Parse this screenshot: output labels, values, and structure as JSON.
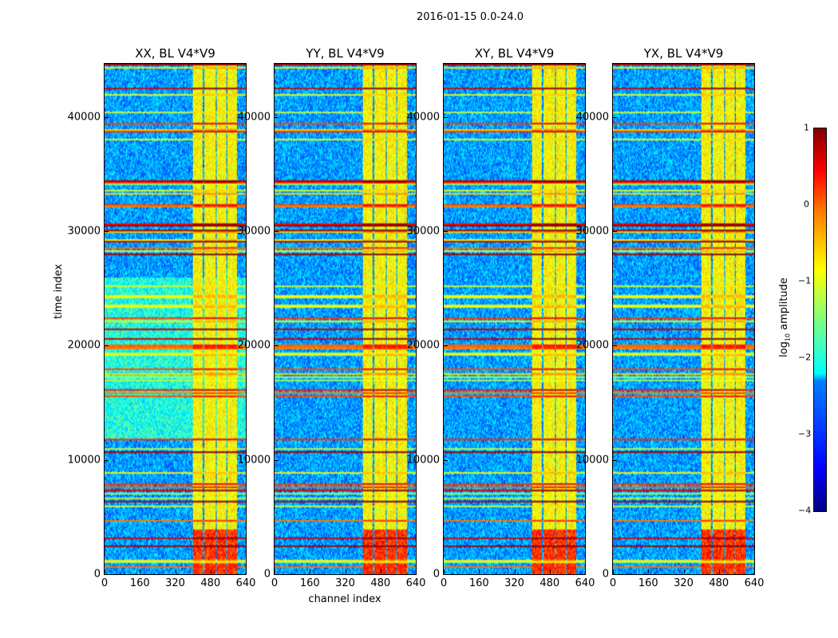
{
  "chart_data": {
    "type": "heatmap",
    "title": "2016-01-15 0.0-24.0",
    "xlabel": "channel index",
    "ylabel": "time index",
    "xlim": [
      0,
      640
    ],
    "ylim": [
      0,
      44660
    ],
    "xticks": [
      "0",
      "160",
      "320",
      "480",
      "640"
    ],
    "xtick_values": [
      0,
      160,
      320,
      480,
      640
    ],
    "yticks": [
      "0",
      "10000",
      "20000",
      "30000",
      "40000"
    ],
    "ytick_values": [
      0,
      10000,
      20000,
      30000,
      40000
    ],
    "panels": [
      {
        "title": "XX, BL V4*V9"
      },
      {
        "title": "YY, BL V4*V9"
      },
      {
        "title": "XY, BL V4*V9"
      },
      {
        "title": "YX, BL V4*V9"
      }
    ],
    "colorbar": {
      "label_prefix": "log",
      "label_sub": "10",
      "label_suffix": " amplitude",
      "range": [
        -4,
        1
      ],
      "ticks": [
        "1",
        "0",
        "−1",
        "−2",
        "−3",
        "−4"
      ],
      "tick_values": [
        1,
        0,
        -1,
        -2,
        -3,
        -4
      ],
      "colormap": "jet"
    },
    "notable_features": {
      "bright_channel_band": [
        400,
        600
      ],
      "bright_time_bands": [
        34000,
        36500
      ]
    }
  }
}
